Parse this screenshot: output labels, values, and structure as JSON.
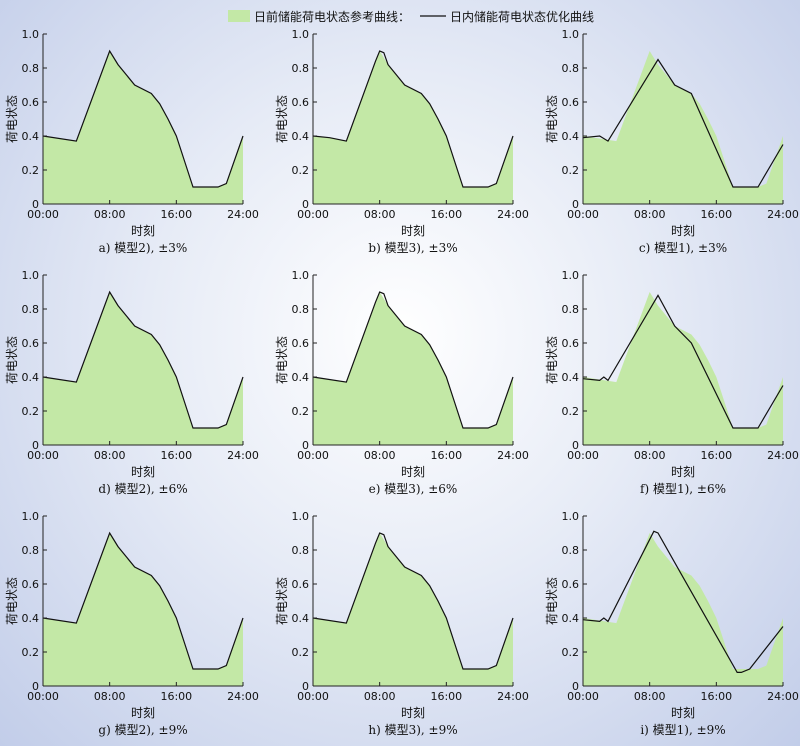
{
  "legend": {
    "reference_label": "日前储能荷电状态参考曲线：",
    "optimized_label": "日内储能荷电状态优化曲线",
    "position": "top-center"
  },
  "colors": {
    "area_fill": "#c3e8a6",
    "line": "#111111",
    "axis": "#222222"
  },
  "chart_data": [
    {
      "type": "area",
      "caption": "a) 模型2), ±3%",
      "xlabel": "时刻",
      "ylabel": "荷电状态",
      "xticks": [
        "00:00",
        "08:00",
        "16:00",
        "24:00"
      ],
      "yticks": [
        "0",
        "0.2",
        "0.4",
        "0.6",
        "0.8",
        "1.0"
      ],
      "xlim": [
        0,
        24
      ],
      "ylim": [
        0,
        1
      ],
      "series": [
        {
          "x": [
            0,
            4,
            8,
            9,
            11,
            13,
            14,
            15,
            16,
            17,
            18,
            19,
            21,
            22,
            24
          ],
          "values": [
            0.4,
            0.37,
            0.9,
            0.82,
            0.7,
            0.65,
            0.59,
            0.5,
            0.4,
            0.25,
            0.1,
            0.1,
            0.1,
            0.12,
            0.4
          ]
        },
        {
          "x": [
            0,
            4,
            8,
            9,
            11,
            13,
            14,
            15,
            16,
            17,
            18,
            19,
            21,
            22,
            24
          ],
          "values": [
            0.4,
            0.37,
            0.9,
            0.82,
            0.7,
            0.65,
            0.59,
            0.5,
            0.4,
            0.25,
            0.1,
            0.1,
            0.1,
            0.12,
            0.4
          ]
        }
      ]
    },
    {
      "type": "area",
      "caption": "b) 模型3), ±3%",
      "xlabel": "时刻",
      "ylabel": "荷电状态",
      "xticks": [
        "00:00",
        "08:00",
        "16:00",
        "24:00"
      ],
      "yticks": [
        "0",
        "0.2",
        "0.4",
        "0.6",
        "0.8",
        "1.0"
      ],
      "xlim": [
        0,
        24
      ],
      "ylim": [
        0,
        1
      ],
      "series": [
        {
          "x": [
            0,
            2,
            4,
            8,
            9,
            11,
            13,
            14,
            15,
            16,
            17,
            18,
            19,
            21,
            22,
            24
          ],
          "values": [
            0.4,
            0.39,
            0.37,
            0.9,
            0.82,
            0.7,
            0.65,
            0.59,
            0.5,
            0.4,
            0.25,
            0.1,
            0.1,
            0.1,
            0.12,
            0.4
          ]
        },
        {
          "x": [
            0,
            2,
            4,
            7.5,
            8,
            8.5,
            9,
            11,
            13,
            14,
            15,
            16,
            17,
            18,
            19,
            21,
            22,
            24
          ],
          "values": [
            0.4,
            0.39,
            0.37,
            0.84,
            0.9,
            0.89,
            0.82,
            0.7,
            0.65,
            0.59,
            0.5,
            0.4,
            0.25,
            0.1,
            0.1,
            0.1,
            0.12,
            0.4
          ]
        }
      ]
    },
    {
      "type": "area",
      "caption": "c) 模型1), ±3%",
      "xlabel": "时刻",
      "ylabel": "荷电状态",
      "xticks": [
        "00:00",
        "08:00",
        "16:00",
        "24:00"
      ],
      "yticks": [
        "0",
        "0.2",
        "0.4",
        "0.6",
        "0.8",
        "1.0"
      ],
      "xlim": [
        0,
        24
      ],
      "ylim": [
        0,
        1
      ],
      "series": [
        {
          "x": [
            0,
            4,
            8,
            9,
            11,
            13,
            14,
            15,
            16,
            17,
            18,
            19,
            21,
            22,
            24
          ],
          "values": [
            0.4,
            0.37,
            0.9,
            0.82,
            0.7,
            0.65,
            0.59,
            0.5,
            0.4,
            0.25,
            0.1,
            0.1,
            0.1,
            0.12,
            0.4
          ]
        },
        {
          "x": [
            0,
            2,
            3,
            9,
            11,
            13,
            18,
            21,
            24
          ],
          "values": [
            0.39,
            0.4,
            0.37,
            0.85,
            0.7,
            0.65,
            0.1,
            0.1,
            0.35
          ]
        }
      ]
    },
    {
      "type": "area",
      "caption": "d) 模型2), ±6%",
      "xlabel": "时刻",
      "ylabel": "荷电状态",
      "xticks": [
        "00:00",
        "08:00",
        "16:00",
        "24:00"
      ],
      "yticks": [
        "0",
        "0.2",
        "0.4",
        "0.6",
        "0.8",
        "1.0"
      ],
      "xlim": [
        0,
        24
      ],
      "ylim": [
        0,
        1
      ],
      "series": [
        {
          "x": [
            0,
            4,
            8,
            9,
            11,
            13,
            14,
            15,
            16,
            17,
            18,
            19,
            21,
            22,
            24
          ],
          "values": [
            0.4,
            0.37,
            0.9,
            0.82,
            0.7,
            0.65,
            0.59,
            0.5,
            0.4,
            0.25,
            0.1,
            0.1,
            0.1,
            0.12,
            0.4
          ]
        },
        {
          "x": [
            0,
            4,
            8,
            9,
            11,
            13,
            14,
            15,
            16,
            17,
            18,
            19,
            21,
            22,
            24
          ],
          "values": [
            0.4,
            0.37,
            0.9,
            0.82,
            0.7,
            0.65,
            0.59,
            0.5,
            0.4,
            0.25,
            0.1,
            0.1,
            0.1,
            0.12,
            0.4
          ]
        }
      ]
    },
    {
      "type": "area",
      "caption": "e) 模型3), ±6%",
      "xlabel": "时刻",
      "ylabel": "荷电状态",
      "xticks": [
        "00:00",
        "08:00",
        "16:00",
        "24:00"
      ],
      "yticks": [
        "0",
        "0.2",
        "0.4",
        "0.6",
        "0.8",
        "1.0"
      ],
      "xlim": [
        0,
        24
      ],
      "ylim": [
        0,
        1
      ],
      "series": [
        {
          "x": [
            0,
            4,
            8,
            9,
            11,
            13,
            14,
            15,
            16,
            17,
            18,
            19,
            21,
            22,
            24
          ],
          "values": [
            0.4,
            0.37,
            0.9,
            0.82,
            0.7,
            0.65,
            0.59,
            0.5,
            0.4,
            0.25,
            0.1,
            0.1,
            0.1,
            0.12,
            0.4
          ]
        },
        {
          "x": [
            0,
            4,
            7.5,
            8,
            8.5,
            9,
            11,
            13,
            14,
            15,
            16,
            17,
            18,
            19,
            21,
            22,
            24
          ],
          "values": [
            0.4,
            0.37,
            0.84,
            0.9,
            0.89,
            0.82,
            0.7,
            0.65,
            0.59,
            0.5,
            0.4,
            0.25,
            0.1,
            0.1,
            0.1,
            0.12,
            0.4
          ]
        }
      ]
    },
    {
      "type": "area",
      "caption": "f) 模型1), ±6%",
      "xlabel": "时刻",
      "ylabel": "荷电状态",
      "xticks": [
        "00:00",
        "08:00",
        "16:00",
        "24:00"
      ],
      "yticks": [
        "0",
        "0.2",
        "0.4",
        "0.6",
        "0.8",
        "1.0"
      ],
      "xlim": [
        0,
        24
      ],
      "ylim": [
        0,
        1
      ],
      "series": [
        {
          "x": [
            0,
            4,
            8,
            9,
            11,
            13,
            14,
            15,
            16,
            17,
            18,
            19,
            21,
            22,
            24
          ],
          "values": [
            0.4,
            0.37,
            0.9,
            0.82,
            0.7,
            0.65,
            0.59,
            0.5,
            0.4,
            0.25,
            0.1,
            0.1,
            0.1,
            0.12,
            0.4
          ]
        },
        {
          "x": [
            0,
            2,
            2.5,
            3,
            9,
            11,
            13,
            18,
            21,
            24
          ],
          "values": [
            0.39,
            0.38,
            0.4,
            0.38,
            0.88,
            0.7,
            0.6,
            0.1,
            0.1,
            0.35
          ]
        }
      ]
    },
    {
      "type": "area",
      "caption": "g) 模型2), ±9%",
      "xlabel": "时刻",
      "ylabel": "荷电状态",
      "xticks": [
        "00:00",
        "08:00",
        "16:00",
        "24:00"
      ],
      "yticks": [
        "0",
        "0.2",
        "0.4",
        "0.6",
        "0.8",
        "1.0"
      ],
      "xlim": [
        0,
        24
      ],
      "ylim": [
        0,
        1
      ],
      "series": [
        {
          "x": [
            0,
            4,
            8,
            9,
            11,
            13,
            14,
            15,
            16,
            17,
            18,
            19,
            21,
            22,
            24
          ],
          "values": [
            0.4,
            0.37,
            0.9,
            0.82,
            0.7,
            0.65,
            0.59,
            0.5,
            0.4,
            0.25,
            0.1,
            0.1,
            0.1,
            0.12,
            0.4
          ]
        },
        {
          "x": [
            0,
            4,
            8,
            9,
            11,
            13,
            14,
            15,
            16,
            17,
            18,
            19,
            21,
            22,
            24
          ],
          "values": [
            0.4,
            0.37,
            0.9,
            0.82,
            0.7,
            0.65,
            0.59,
            0.5,
            0.4,
            0.25,
            0.1,
            0.1,
            0.1,
            0.12,
            0.4
          ]
        }
      ]
    },
    {
      "type": "area",
      "caption": "h) 模型3), ±9%",
      "xlabel": "时刻",
      "ylabel": "荷电状态",
      "xticks": [
        "00:00",
        "08:00",
        "16:00",
        "24:00"
      ],
      "yticks": [
        "0",
        "0.2",
        "0.4",
        "0.6",
        "0.8",
        "1.0"
      ],
      "xlim": [
        0,
        24
      ],
      "ylim": [
        0,
        1
      ],
      "series": [
        {
          "x": [
            0,
            4,
            8,
            9,
            11,
            13,
            14,
            15,
            16,
            17,
            18,
            19,
            21,
            22,
            24
          ],
          "values": [
            0.4,
            0.37,
            0.9,
            0.82,
            0.7,
            0.65,
            0.59,
            0.5,
            0.4,
            0.25,
            0.1,
            0.1,
            0.1,
            0.12,
            0.4
          ]
        },
        {
          "x": [
            0,
            4,
            7.5,
            8,
            8.5,
            9,
            11,
            13,
            14,
            15,
            16,
            17,
            18,
            19,
            21,
            22,
            24
          ],
          "values": [
            0.4,
            0.37,
            0.84,
            0.9,
            0.89,
            0.82,
            0.7,
            0.65,
            0.59,
            0.5,
            0.4,
            0.25,
            0.1,
            0.1,
            0.1,
            0.12,
            0.4
          ]
        }
      ]
    },
    {
      "type": "area",
      "caption": "i) 模型1), ±9%",
      "xlabel": "时刻",
      "ylabel": "荷电状态",
      "xticks": [
        "00:00",
        "08:00",
        "16:00",
        "24:00"
      ],
      "yticks": [
        "0",
        "0.2",
        "0.4",
        "0.6",
        "0.8",
        "1.0"
      ],
      "xlim": [
        0,
        24
      ],
      "ylim": [
        0,
        1
      ],
      "series": [
        {
          "x": [
            0,
            4,
            8,
            9,
            11,
            13,
            14,
            15,
            16,
            17,
            18,
            19,
            21,
            22,
            24
          ],
          "values": [
            0.4,
            0.37,
            0.9,
            0.82,
            0.7,
            0.65,
            0.59,
            0.5,
            0.4,
            0.25,
            0.1,
            0.1,
            0.1,
            0.12,
            0.4
          ]
        },
        {
          "x": [
            0,
            2,
            2.5,
            3,
            8.5,
            9,
            12,
            18.5,
            19,
            20,
            24
          ],
          "values": [
            0.39,
            0.38,
            0.4,
            0.38,
            0.91,
            0.9,
            0.64,
            0.08,
            0.08,
            0.1,
            0.35
          ]
        }
      ]
    }
  ]
}
